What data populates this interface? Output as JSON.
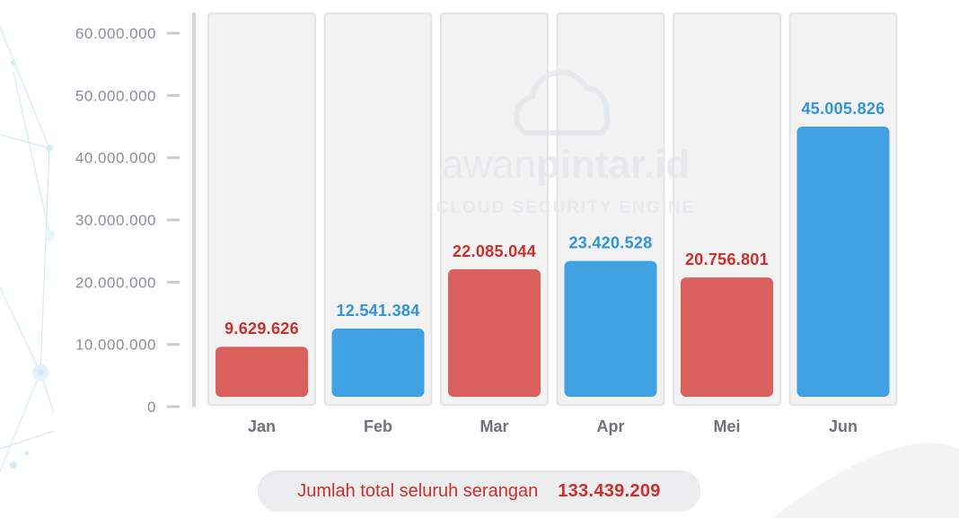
{
  "chart_data": {
    "type": "bar",
    "categories": [
      "Jan",
      "Feb",
      "Mar",
      "Apr",
      "Mei",
      "Jun"
    ],
    "values": [
      9629626,
      12541384,
      22085044,
      23420528,
      20756801,
      45005826
    ],
    "value_labels": [
      "9.629.626",
      "12.541.384",
      "22.085.044",
      "23.420.528",
      "20.756.801",
      "45.005.826"
    ],
    "yticks": [
      {
        "value": 0,
        "label": "0"
      },
      {
        "value": 10000000,
        "label": "10.000.000"
      },
      {
        "value": 20000000,
        "label": "20.000.000"
      },
      {
        "value": 30000000,
        "label": "30.000.000"
      },
      {
        "value": 40000000,
        "label": "40.000.000"
      },
      {
        "value": 50000000,
        "label": "50.000.000"
      },
      {
        "value": 60000000,
        "label": "60.000.000"
      }
    ],
    "ylim": [
      0,
      60000000
    ],
    "bar_colors": [
      "#d9605d",
      "#41a2e3",
      "#d9605d",
      "#41a2e3",
      "#d9605d",
      "#41a2e3"
    ],
    "label_colors": [
      "#c9302c",
      "#2e95d8",
      "#c9302c",
      "#2e95d8",
      "#c9302c",
      "#2e95d8"
    ],
    "slot_color": "#f2f2f3",
    "grid": false
  },
  "watermark": {
    "brand_part1": "awan",
    "brand_part2": "pintar.id",
    "tagline": "CLOUD SECURITY ENGINE",
    "icon": "cloud-icon"
  },
  "summary": {
    "label": "Jumlah total seluruh serangan",
    "value": "133.439.209"
  }
}
